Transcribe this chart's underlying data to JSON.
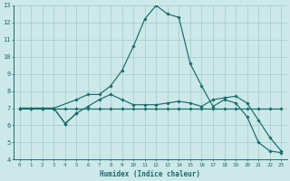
{
  "title": "",
  "xlabel": "Humidex (Indice chaleur)",
  "xlim": [
    -0.5,
    23.5
  ],
  "ylim": [
    4,
    13
  ],
  "xticks": [
    0,
    1,
    2,
    3,
    4,
    5,
    6,
    7,
    8,
    9,
    10,
    11,
    12,
    13,
    14,
    15,
    16,
    17,
    18,
    19,
    20,
    21,
    22,
    23
  ],
  "yticks": [
    4,
    5,
    6,
    7,
    8,
    9,
    10,
    11,
    12,
    13
  ],
  "bg_color": "#cce8e8",
  "line_color": "#1a6b6b",
  "grid_color": "#aacfcf",
  "lines": [
    {
      "x": [
        0,
        1,
        2,
        3,
        4,
        5,
        6,
        7,
        8,
        9,
        10,
        11,
        12,
        13,
        14,
        15,
        16,
        17,
        18,
        19,
        20,
        21,
        22,
        23
      ],
      "y": [
        7.0,
        7.0,
        7.0,
        7.0,
        7.0,
        7.0,
        7.0,
        7.0,
        7.0,
        7.0,
        7.0,
        7.0,
        7.0,
        7.0,
        7.0,
        7.0,
        7.0,
        7.0,
        7.0,
        7.0,
        7.0,
        7.0,
        7.0,
        7.0
      ],
      "marker": true
    },
    {
      "x": [
        0,
        1,
        2,
        3,
        5,
        6,
        7,
        8,
        9,
        10,
        11,
        12,
        13,
        14,
        15,
        16,
        17,
        18,
        19,
        20,
        21,
        22,
        23
      ],
      "y": [
        7.0,
        7.0,
        7.0,
        7.0,
        7.5,
        7.8,
        7.8,
        8.3,
        9.2,
        10.6,
        12.2,
        13.0,
        12.5,
        12.3,
        9.6,
        8.3,
        7.1,
        7.5,
        7.3,
        6.5,
        5.0,
        4.5,
        4.4
      ],
      "marker": true
    },
    {
      "x": [
        0,
        1,
        2,
        3,
        4,
        5,
        6,
        7,
        8,
        9,
        10,
        11,
        12,
        13,
        14,
        15,
        16,
        17,
        18,
        19,
        20,
        21,
        22,
        23
      ],
      "y": [
        7.0,
        7.0,
        7.0,
        7.0,
        6.1,
        6.7,
        7.1,
        7.5,
        7.8,
        7.5,
        7.2,
        7.2,
        7.2,
        7.3,
        7.4,
        7.3,
        7.1,
        7.5,
        7.6,
        7.7,
        7.3,
        6.3,
        5.3,
        4.5
      ],
      "marker": true
    },
    {
      "x": [
        3,
        4,
        5
      ],
      "y": [
        7.0,
        6.1,
        6.7
      ],
      "marker": true
    }
  ]
}
